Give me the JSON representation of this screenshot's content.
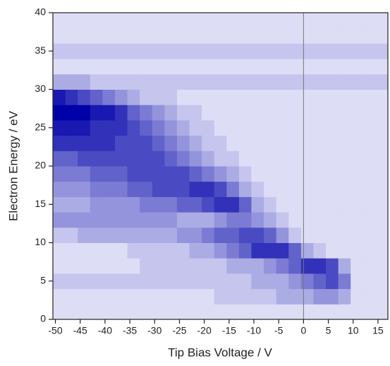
{
  "chart_data": {
    "type": "heatmap",
    "xlabel": "Tip Bias Voltage / V",
    "ylabel": "Electron Energy / eV",
    "xlim": [
      -50.5,
      17
    ],
    "ylim": [
      0,
      40
    ],
    "xticks": [
      -50,
      -45,
      -40,
      -35,
      -30,
      -25,
      -20,
      -15,
      -10,
      -5,
      0,
      5,
      10,
      15
    ],
    "yticks": [
      0,
      5,
      10,
      15,
      20,
      25,
      30,
      35,
      40
    ],
    "vline": 0,
    "zlim": [
      0,
      10
    ],
    "colormap": [
      "#f6f6ff",
      "#0000a8"
    ],
    "xbins": [
      -50.5,
      -48,
      -45.5,
      -43,
      -40.5,
      -38,
      -35.5,
      -33,
      -30.5,
      -28,
      -25.5,
      -23,
      -20.5,
      -18,
      -15.5,
      -13,
      -10.5,
      -8,
      -5.5,
      -3,
      -0.5,
      2,
      4.5,
      7,
      9.5,
      12,
      14.5,
      17
    ],
    "ybins": [
      0,
      2,
      4,
      6,
      8,
      10,
      12,
      14,
      16,
      18,
      20,
      22,
      24,
      26,
      28,
      30,
      32,
      34,
      36,
      38,
      40
    ],
    "z": [
      [
        1,
        1,
        1,
        1,
        1,
        1,
        1,
        1,
        1,
        1,
        1,
        1,
        1,
        1,
        1,
        1,
        1,
        1,
        1,
        1,
        1,
        1,
        1,
        1,
        1,
        1,
        1
      ],
      [
        1,
        1,
        1,
        1,
        1,
        1,
        1,
        1,
        1,
        1,
        1,
        1,
        1,
        2,
        2,
        2,
        2,
        2,
        3,
        3,
        3,
        4,
        4,
        3,
        1,
        1,
        1
      ],
      [
        2,
        2,
        2,
        2,
        2,
        2,
        2,
        2,
        2,
        2,
        2,
        2,
        2,
        2,
        2,
        2,
        3,
        3,
        3,
        4,
        5,
        6,
        7,
        5,
        1,
        1,
        1
      ],
      [
        1,
        1,
        1,
        1,
        1,
        1,
        1,
        2,
        2,
        2,
        2,
        2,
        2,
        2,
        3,
        3,
        3,
        4,
        5,
        6,
        8,
        8,
        7,
        3,
        1,
        1,
        1
      ],
      [
        1,
        1,
        1,
        1,
        1,
        1,
        2,
        2,
        2,
        2,
        2,
        3,
        3,
        4,
        5,
        6,
        8,
        8,
        8,
        6,
        3,
        2,
        1,
        1,
        1,
        1,
        1
      ],
      [
        2,
        2,
        3,
        3,
        3,
        3,
        3,
        3,
        3,
        3,
        4,
        4,
        5,
        6,
        6,
        7,
        7,
        6,
        4,
        2,
        1,
        1,
        1,
        1,
        1,
        1,
        1
      ],
      [
        4,
        4,
        4,
        4,
        4,
        4,
        4,
        4,
        4,
        4,
        3,
        3,
        3,
        4,
        5,
        5,
        4,
        3,
        2,
        1,
        1,
        1,
        1,
        1,
        1,
        1,
        1
      ],
      [
        3,
        3,
        3,
        4,
        4,
        4,
        4,
        5,
        5,
        5,
        6,
        6,
        7,
        8,
        8,
        6,
        3,
        2,
        1,
        1,
        1,
        1,
        1,
        1,
        1,
        1,
        1
      ],
      [
        4,
        4,
        4,
        5,
        5,
        5,
        6,
        6,
        7,
        7,
        7,
        8,
        8,
        7,
        5,
        3,
        2,
        1,
        1,
        1,
        1,
        1,
        1,
        1,
        1,
        1,
        1
      ],
      [
        5,
        5,
        5,
        6,
        6,
        6,
        7,
        7,
        7,
        7,
        7,
        6,
        5,
        4,
        3,
        2,
        1,
        1,
        1,
        1,
        1,
        1,
        1,
        1,
        1,
        1,
        1
      ],
      [
        6,
        6,
        7,
        7,
        7,
        7,
        7,
        7,
        7,
        6,
        5,
        4,
        3,
        2,
        2,
        1,
        1,
        1,
        1,
        1,
        1,
        1,
        1,
        1,
        1,
        1,
        1
      ],
      [
        8,
        8,
        8,
        8,
        8,
        7,
        7,
        7,
        6,
        5,
        4,
        3,
        2,
        2,
        1,
        1,
        1,
        1,
        1,
        1,
        1,
        1,
        1,
        1,
        1,
        1,
        1
      ],
      [
        9,
        9,
        9,
        8,
        8,
        8,
        7,
        6,
        5,
        4,
        3,
        2,
        2,
        1,
        1,
        1,
        1,
        1,
        1,
        1,
        1,
        1,
        1,
        1,
        1,
        1,
        1
      ],
      [
        10,
        10,
        10,
        9,
        9,
        8,
        6,
        5,
        4,
        3,
        2,
        2,
        1,
        1,
        1,
        1,
        1,
        1,
        1,
        1,
        1,
        1,
        1,
        1,
        1,
        1,
        1
      ],
      [
        9,
        8,
        7,
        6,
        5,
        4,
        3,
        2,
        2,
        2,
        1,
        1,
        1,
        1,
        1,
        1,
        1,
        1,
        1,
        1,
        1,
        1,
        1,
        1,
        1,
        1,
        1
      ],
      [
        3,
        3,
        3,
        2,
        2,
        2,
        2,
        2,
        2,
        2,
        2,
        2,
        2,
        2,
        2,
        2,
        2,
        2,
        2,
        2,
        2,
        2,
        2,
        2,
        2,
        2,
        2
      ],
      [
        1,
        1,
        1,
        1,
        1,
        1,
        1,
        1,
        1,
        1,
        1,
        1,
        1,
        1,
        1,
        1,
        1,
        1,
        1,
        1,
        1,
        1,
        1,
        1,
        1,
        1,
        1
      ],
      [
        2,
        2,
        2,
        2,
        2,
        2,
        2,
        2,
        2,
        2,
        2,
        2,
        2,
        2,
        2,
        2,
        2,
        2,
        2,
        2,
        2,
        2,
        2,
        2,
        2,
        2,
        2
      ],
      [
        1,
        1,
        1,
        1,
        1,
        1,
        1,
        1,
        1,
        1,
        1,
        1,
        1,
        1,
        1,
        1,
        1,
        1,
        1,
        1,
        1,
        1,
        1,
        1,
        1,
        1,
        1
      ],
      [
        1,
        1,
        1,
        1,
        1,
        1,
        1,
        1,
        1,
        1,
        1,
        1,
        1,
        1,
        1,
        1,
        1,
        1,
        1,
        1,
        1,
        1,
        1,
        1,
        1,
        1,
        1
      ]
    ]
  }
}
